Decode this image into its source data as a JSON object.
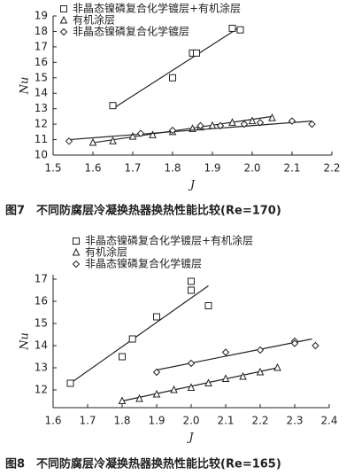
{
  "chart_data": [
    {
      "type": "scatter",
      "y_label": "Nu",
      "x_label": "J",
      "caption": "图7　不同防腐层冷凝换热器换热性能比较(Re=170)",
      "xlim": [
        1.5,
        2.2
      ],
      "xticks": [
        1.5,
        1.6,
        1.7,
        1.8,
        1.9,
        {
          "value": 2,
          "label": "2.0"
        },
        2.1,
        2.2
      ],
      "ylim": [
        10,
        19
      ],
      "yticks": [
        10,
        11,
        12,
        13,
        14,
        15,
        16,
        17,
        18,
        19
      ],
      "series": [
        {
          "name": "非晶态镍磷复合化学镀层+有机涂层",
          "marker": "square",
          "color": "#222222",
          "x": [
            1.65,
            1.8,
            1.85,
            1.86,
            1.95,
            1.97
          ],
          "values": [
            13.2,
            15.0,
            16.6,
            16.6,
            18.2,
            18.1
          ],
          "fit": {
            "x": [
              1.65,
              1.97
            ],
            "values": [
              13.0,
              18.3
            ]
          }
        },
        {
          "name": "有机涂层",
          "marker": "triangle",
          "color": "#222222",
          "x": [
            1.6,
            1.65,
            1.7,
            1.75,
            1.8,
            1.85,
            1.87,
            1.9,
            1.95,
            2.0,
            2.05
          ],
          "values": [
            10.8,
            10.9,
            11.2,
            11.3,
            11.5,
            11.7,
            11.8,
            11.9,
            12.1,
            12.2,
            12.4
          ],
          "fit": {
            "x": [
              1.6,
              2.05
            ],
            "values": [
              10.8,
              12.5
            ]
          }
        },
        {
          "name": "非晶态镍磷复合化学镀层",
          "marker": "diamond",
          "color": "#222222",
          "x": [
            1.54,
            1.72,
            1.8,
            1.87,
            1.92,
            1.98,
            2.02,
            2.1,
            2.15
          ],
          "values": [
            10.9,
            11.4,
            11.6,
            11.9,
            11.9,
            12.0,
            12.1,
            12.2,
            12.0
          ],
          "fit": {
            "x": [
              1.54,
              2.15
            ],
            "values": [
              11.0,
              12.2
            ]
          }
        }
      ]
    },
    {
      "type": "scatter",
      "y_label": "Nu",
      "x_label": "J",
      "caption": "图8　不同防腐层冷凝换热器换热性能比较(Re=165)",
      "xlim": [
        1.6,
        2.4
      ],
      "xticks": [
        1.6,
        1.7,
        1.8,
        1.9,
        {
          "value": 2,
          "label": "2.0"
        },
        2.1,
        2.2,
        2.3,
        2.4
      ],
      "ylim": [
        11.2,
        17.2
      ],
      "yticks": [
        12,
        13,
        14,
        15,
        16,
        17
      ],
      "series": [
        {
          "name": "非晶态镍磷复合化学镀层+有机涂层",
          "marker": "square",
          "color": "#222222",
          "x": [
            1.65,
            1.8,
            1.83,
            1.9,
            2.0,
            2.0,
            2.05
          ],
          "values": [
            12.3,
            13.5,
            14.3,
            15.3,
            16.9,
            16.5,
            15.8
          ],
          "fit": {
            "x": [
              1.65,
              2.05
            ],
            "values": [
              12.3,
              16.7
            ]
          }
        },
        {
          "name": "有机涂层",
          "marker": "triangle",
          "color": "#222222",
          "x": [
            1.8,
            1.85,
            1.9,
            1.95,
            2.0,
            2.05,
            2.1,
            2.15,
            2.2,
            2.25
          ],
          "values": [
            11.5,
            11.6,
            11.8,
            12.0,
            12.1,
            12.3,
            12.5,
            12.6,
            12.8,
            13.0
          ],
          "fit": {
            "x": [
              1.8,
              2.25
            ],
            "values": [
              11.5,
              13.0
            ]
          }
        },
        {
          "name": "非晶态镍磷复合化学镀层",
          "marker": "diamond",
          "color": "#222222",
          "x": [
            1.9,
            2.0,
            2.1,
            2.2,
            2.3,
            2.36,
            2.3
          ],
          "values": [
            12.8,
            13.2,
            13.7,
            13.8,
            14.2,
            14.0,
            14.1
          ],
          "fit": {
            "x": [
              1.9,
              2.35
            ],
            "values": [
              12.9,
              14.3
            ]
          }
        }
      ]
    }
  ]
}
